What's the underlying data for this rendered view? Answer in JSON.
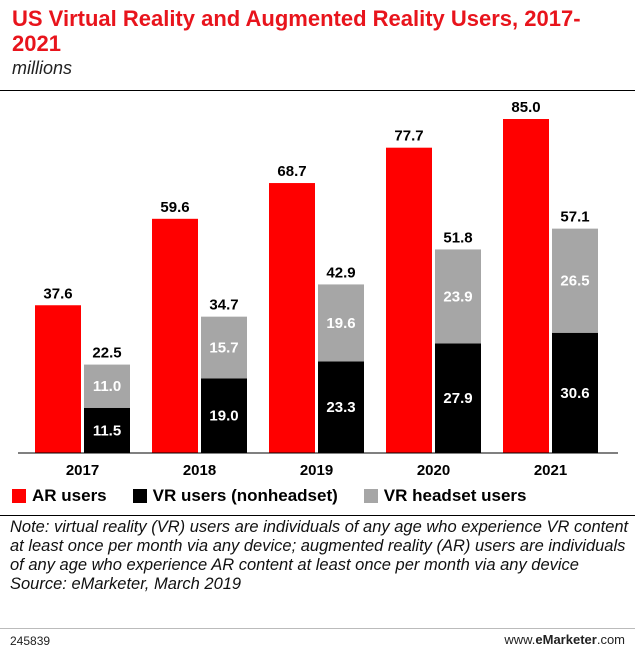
{
  "header": {
    "title": "US Virtual Reality and Augmented Reality Users, 2017-2021",
    "subtitle": "millions"
  },
  "colors": {
    "ar": "#ff0000",
    "vr_nonheadset": "#000000",
    "vr_headset": "#a6a6a6"
  },
  "legend": {
    "ar": "AR users",
    "vr_nonheadset": "VR users (nonheadset)",
    "vr_headset": "VR headset users"
  },
  "chart_data": {
    "type": "bar",
    "title": "US Virtual Reality and Augmented Reality Users, 2017-2021",
    "subtitle": "millions",
    "categories": [
      "2017",
      "2018",
      "2019",
      "2020",
      "2021"
    ],
    "ylim": [
      0,
      85.0
    ],
    "grid": false,
    "legend_position": "bottom",
    "series": [
      {
        "name": "AR users",
        "stack": "ar",
        "values": [
          37.6,
          59.6,
          68.7,
          77.7,
          85.0
        ]
      },
      {
        "name": "VR users (nonheadset)",
        "stack": "vr",
        "values": [
          11.5,
          19.0,
          23.3,
          27.9,
          30.6
        ]
      },
      {
        "name": "VR headset users",
        "stack": "vr",
        "values": [
          11.0,
          15.7,
          19.6,
          23.9,
          26.5
        ]
      }
    ],
    "vr_totals": [
      "22.5",
      "34.7",
      "42.9",
      "51.8",
      "57.1"
    ]
  },
  "note": {
    "text": "Note: virtual reality (VR) users are individuals of any age who experience VR content at least once per month via any device; augmented reality (AR) users are individuals of any age who experience AR content at least once per month via any device",
    "source": "Source: eMarketer, March 2019"
  },
  "footer": {
    "id": "245839",
    "brand_prefix": "www.",
    "brand_name": "eMarketer",
    "brand_suffix": ".com"
  }
}
